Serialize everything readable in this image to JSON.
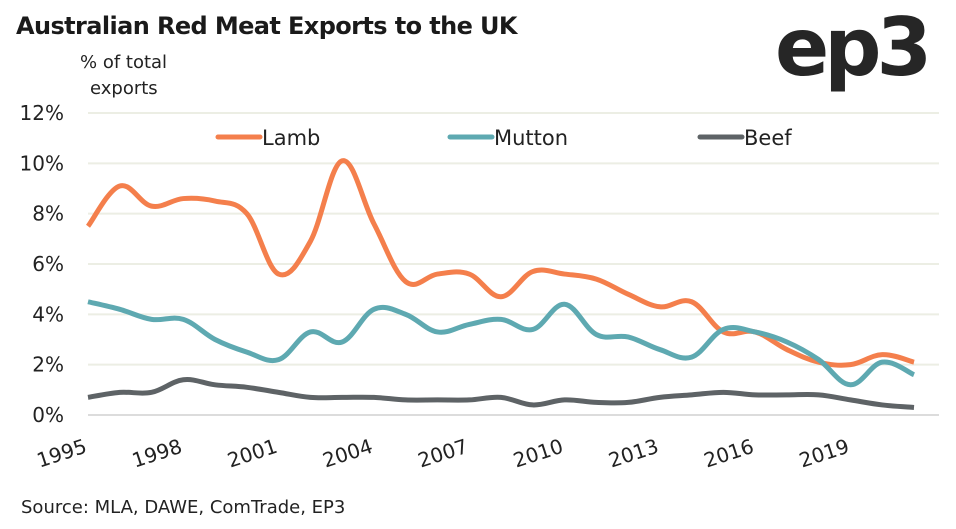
{
  "title": "Australian Red Meat Exports to the UK",
  "logo": "ep3",
  "ylabel_lines": [
    "% of total",
    "exports"
  ],
  "source": "Source: MLA, DAWE, ComTrade, EP3",
  "chart_data": {
    "type": "line",
    "title": "Australian Red Meat Exports to the UK",
    "xlabel": "",
    "ylabel": "% of total exports",
    "ylim": [
      0,
      12
    ],
    "yticks": [
      0,
      2,
      4,
      6,
      8,
      10,
      12
    ],
    "ytick_labels": [
      "0%",
      "2%",
      "4%",
      "6%",
      "8%",
      "10%",
      "12%"
    ],
    "xlim": [
      1995,
      2021
    ],
    "xticks": [
      1995,
      1998,
      2001,
      2004,
      2007,
      2010,
      2013,
      2016,
      2019
    ],
    "xtick_labels": [
      "1995",
      "1998",
      "2001",
      "2004",
      "2007",
      "2010",
      "2013",
      "2016",
      "2019"
    ],
    "grid": true,
    "legend_position": "top",
    "x": [
      1995,
      1996,
      1997,
      1998,
      1999,
      2000,
      2001,
      2002,
      2003,
      2004,
      2005,
      2006,
      2007,
      2008,
      2009,
      2010,
      2011,
      2012,
      2013,
      2014,
      2015,
      2016,
      2017,
      2018,
      2019,
      2020,
      2021
    ],
    "series": [
      {
        "name": "Lamb",
        "color": "#f47f4c",
        "values": [
          7.5,
          9.1,
          8.3,
          8.6,
          8.5,
          8.0,
          5.6,
          6.9,
          10.1,
          7.6,
          5.3,
          5.6,
          5.6,
          4.7,
          5.7,
          5.6,
          5.4,
          4.8,
          4.3,
          4.5,
          3.3,
          3.3,
          2.6,
          2.1,
          2.0,
          2.4,
          2.1
        ]
      },
      {
        "name": "Mutton",
        "color": "#5ea9b1",
        "values": [
          4.5,
          4.2,
          3.8,
          3.8,
          3.0,
          2.5,
          2.2,
          3.3,
          2.9,
          4.2,
          4.0,
          3.3,
          3.6,
          3.8,
          3.4,
          4.4,
          3.2,
          3.1,
          2.6,
          2.3,
          3.4,
          3.3,
          2.9,
          2.2,
          1.2,
          2.1,
          1.6
        ]
      },
      {
        "name": "Beef",
        "color": "#5e6366",
        "values": [
          0.7,
          0.9,
          0.9,
          1.4,
          1.2,
          1.1,
          0.9,
          0.7,
          0.7,
          0.7,
          0.6,
          0.6,
          0.6,
          0.7,
          0.4,
          0.6,
          0.5,
          0.5,
          0.7,
          0.8,
          0.9,
          0.8,
          0.8,
          0.8,
          0.6,
          0.4,
          0.3
        ]
      }
    ]
  },
  "colors": {
    "gridline": "#eceee4",
    "baseline": "#dcdcdc",
    "text": "#222222"
  }
}
